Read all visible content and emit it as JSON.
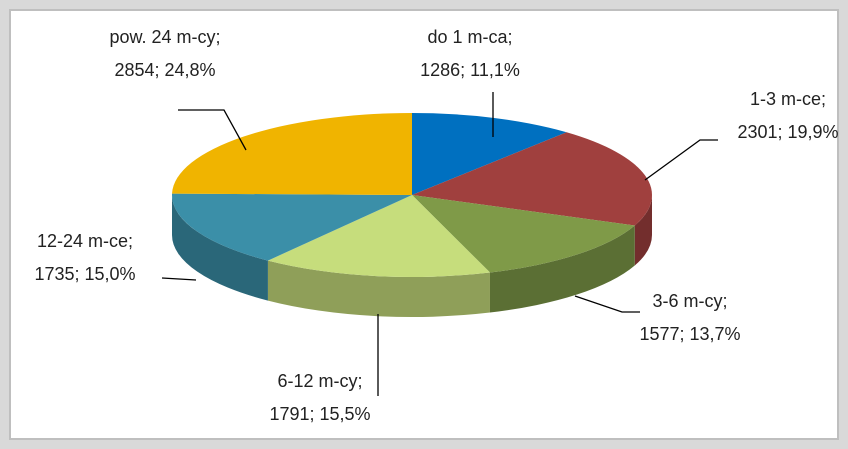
{
  "chart_data": {
    "type": "pie3d",
    "categories": [
      "do 1 m-ca;",
      "1-3 m-ce;",
      "3-6 m-cy;",
      "6-12 m-cy;",
      "12-24 m-ce;",
      "pow. 24 m-cy;"
    ],
    "values": [
      1286,
      2301,
      1577,
      1791,
      1735,
      2854
    ],
    "value_labels": [
      "1286; 11,1%",
      "2301; 19,9%",
      "1577; 13,7%",
      "1791; 15,5%",
      "1735; 15,0%",
      "2854; 24,8%"
    ],
    "colors": [
      "#0070c0",
      "#a0403e",
      "#7f9a48",
      "#c6dd7c",
      "#3b8fa8",
      "#f0b400"
    ]
  }
}
